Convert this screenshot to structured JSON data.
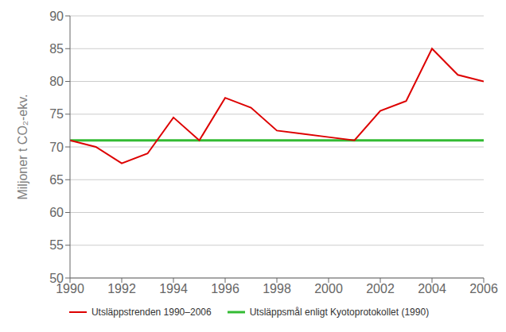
{
  "chart_data": {
    "type": "line",
    "x": [
      1990,
      1991,
      1992,
      1993,
      1994,
      1995,
      1996,
      1997,
      1998,
      1999,
      2000,
      2001,
      2002,
      2003,
      2004,
      2005,
      2006
    ],
    "series": [
      {
        "name": "Utsläppstrenden 1990–2006",
        "color": "#dd0000",
        "values": [
          71.0,
          70.0,
          67.5,
          69.0,
          74.5,
          71.0,
          77.5,
          76.0,
          72.5,
          72.0,
          71.5,
          71.0,
          75.5,
          77.0,
          85.0,
          81.0,
          80.0
        ]
      },
      {
        "name": "Utsläppsmål enligt Kyotoprotokollet (1990)",
        "color": "#33bb33",
        "type": "hline",
        "value": 71.0
      }
    ],
    "ylabel": "Miljoner t CO₂-ekv.",
    "xlim": [
      1990,
      2006
    ],
    "xticks": [
      1990,
      1992,
      1994,
      1996,
      1998,
      2000,
      2002,
      2004,
      2006
    ],
    "ylim": [
      50,
      90
    ],
    "yticks": [
      50,
      55,
      60,
      65,
      70,
      75,
      80,
      85,
      90
    ],
    "grid": "y",
    "legend": "bottom"
  }
}
